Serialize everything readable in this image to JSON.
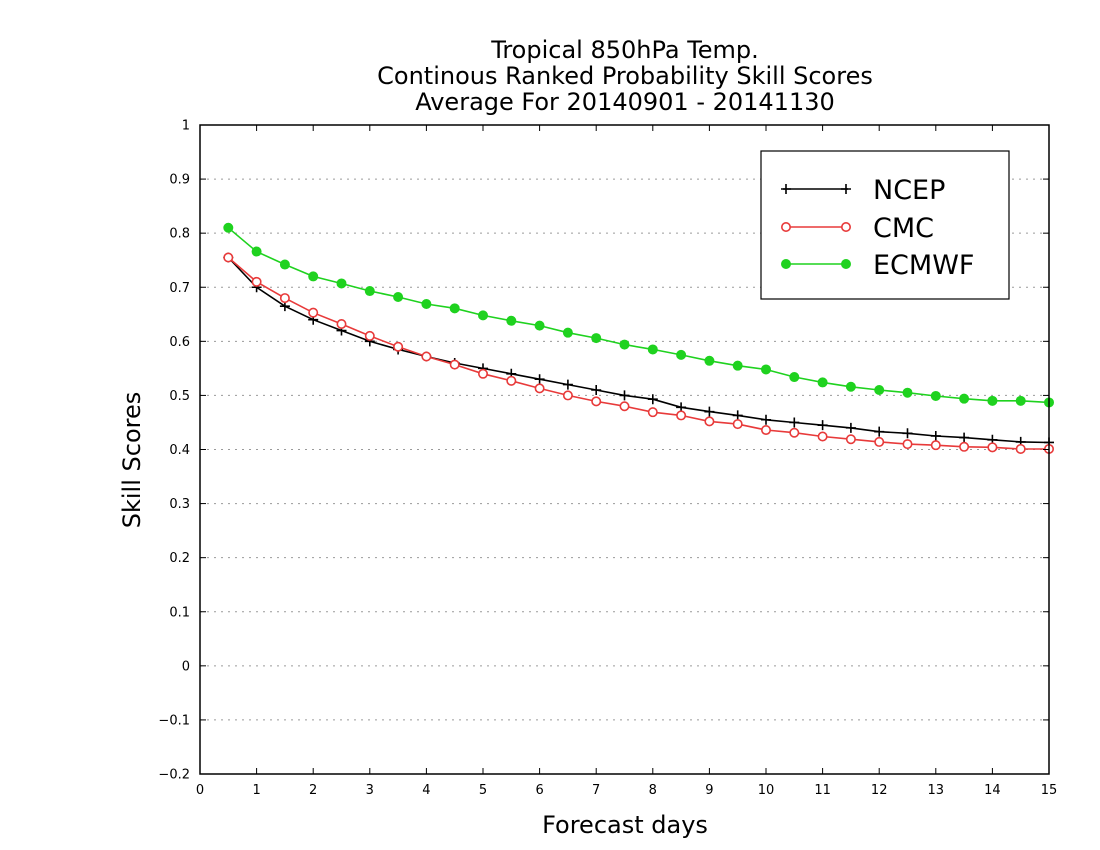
{
  "chart_data": {
    "type": "line",
    "title": [
      "Tropical 850hPa Temp.",
      "Continous Ranked Probability Skill Scores",
      "Average For 20140901 - 20141130"
    ],
    "xlabel": "Forecast days",
    "ylabel": "Skill Scores",
    "xlim": [
      0,
      15
    ],
    "ylim": [
      -0.2,
      1
    ],
    "xticks": [
      0,
      1,
      2,
      3,
      4,
      5,
      6,
      7,
      8,
      9,
      10,
      11,
      12,
      13,
      14,
      15
    ],
    "yticks": [
      -0.2,
      -0.1,
      0,
      0.1,
      0.2,
      0.3,
      0.4,
      0.5,
      0.6,
      0.7,
      0.8,
      0.9,
      1
    ],
    "ytick_labels": [
      "−0.2",
      "−0.1",
      "0",
      "0.1",
      "0.2",
      "0.3",
      "0.4",
      "0.5",
      "0.6",
      "0.7",
      "0.8",
      "0.9",
      "1"
    ],
    "grid": true,
    "legend_position": "top-right",
    "x": [
      0.5,
      1,
      1.5,
      2,
      2.5,
      3,
      3.5,
      4,
      4.5,
      5,
      5.5,
      6,
      6.5,
      7,
      7.5,
      8,
      8.5,
      9,
      9.5,
      10,
      10.5,
      11,
      11.5,
      12,
      12.5,
      13,
      13.5,
      14,
      14.5,
      15
    ],
    "series": [
      {
        "name": "NCEP",
        "color": "#000000",
        "marker": "plus",
        "values": [
          0.755,
          0.7,
          0.665,
          0.64,
          0.62,
          0.6,
          0.585,
          0.572,
          0.56,
          0.55,
          0.54,
          0.53,
          0.52,
          0.51,
          0.5,
          0.493,
          0.478,
          0.47,
          0.463,
          0.455,
          0.45,
          0.445,
          0.44,
          0.433,
          0.43,
          0.425,
          0.422,
          0.418,
          0.414,
          0.413
        ]
      },
      {
        "name": "CMC",
        "color": "#e83a3a",
        "marker": "open-circle",
        "values": [
          0.755,
          0.71,
          0.68,
          0.653,
          0.632,
          0.61,
          0.59,
          0.572,
          0.557,
          0.54,
          0.527,
          0.513,
          0.5,
          0.489,
          0.48,
          0.469,
          0.463,
          0.452,
          0.447,
          0.436,
          0.431,
          0.424,
          0.419,
          0.414,
          0.41,
          0.408,
          0.405,
          0.404,
          0.401,
          0.401
        ]
      },
      {
        "name": "ECMWF",
        "color": "#1fd21f",
        "marker": "filled-circle",
        "values": [
          0.81,
          0.766,
          0.742,
          0.72,
          0.707,
          0.693,
          0.682,
          0.669,
          0.661,
          0.648,
          0.638,
          0.629,
          0.616,
          0.606,
          0.594,
          0.585,
          0.575,
          0.564,
          0.555,
          0.548,
          0.534,
          0.524,
          0.516,
          0.51,
          0.505,
          0.499,
          0.494,
          0.49,
          0.49,
          0.487
        ]
      }
    ]
  }
}
